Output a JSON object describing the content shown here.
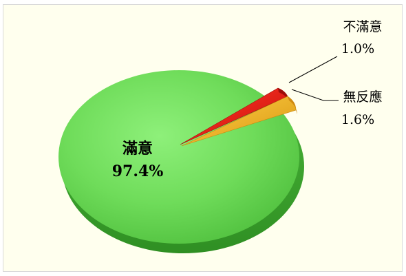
{
  "chart_data": {
    "type": "pie",
    "style": "3d",
    "colors": {
      "satisfied": "#6fdc5a",
      "not_satisfied": "#e0120e",
      "no_response": "#f2b624",
      "background": "#ffffee"
    },
    "slices": [
      {
        "key": "satisfied",
        "label": "滿意",
        "value": 97.4,
        "value_label": "97.4%"
      },
      {
        "key": "not_satisfied",
        "label": "不滿意",
        "value": 1.0,
        "value_label": "1.0%"
      },
      {
        "key": "no_response",
        "label": "無反應",
        "value": 1.6,
        "value_label": "1.6%"
      }
    ],
    "legend": "none",
    "grid": false
  }
}
